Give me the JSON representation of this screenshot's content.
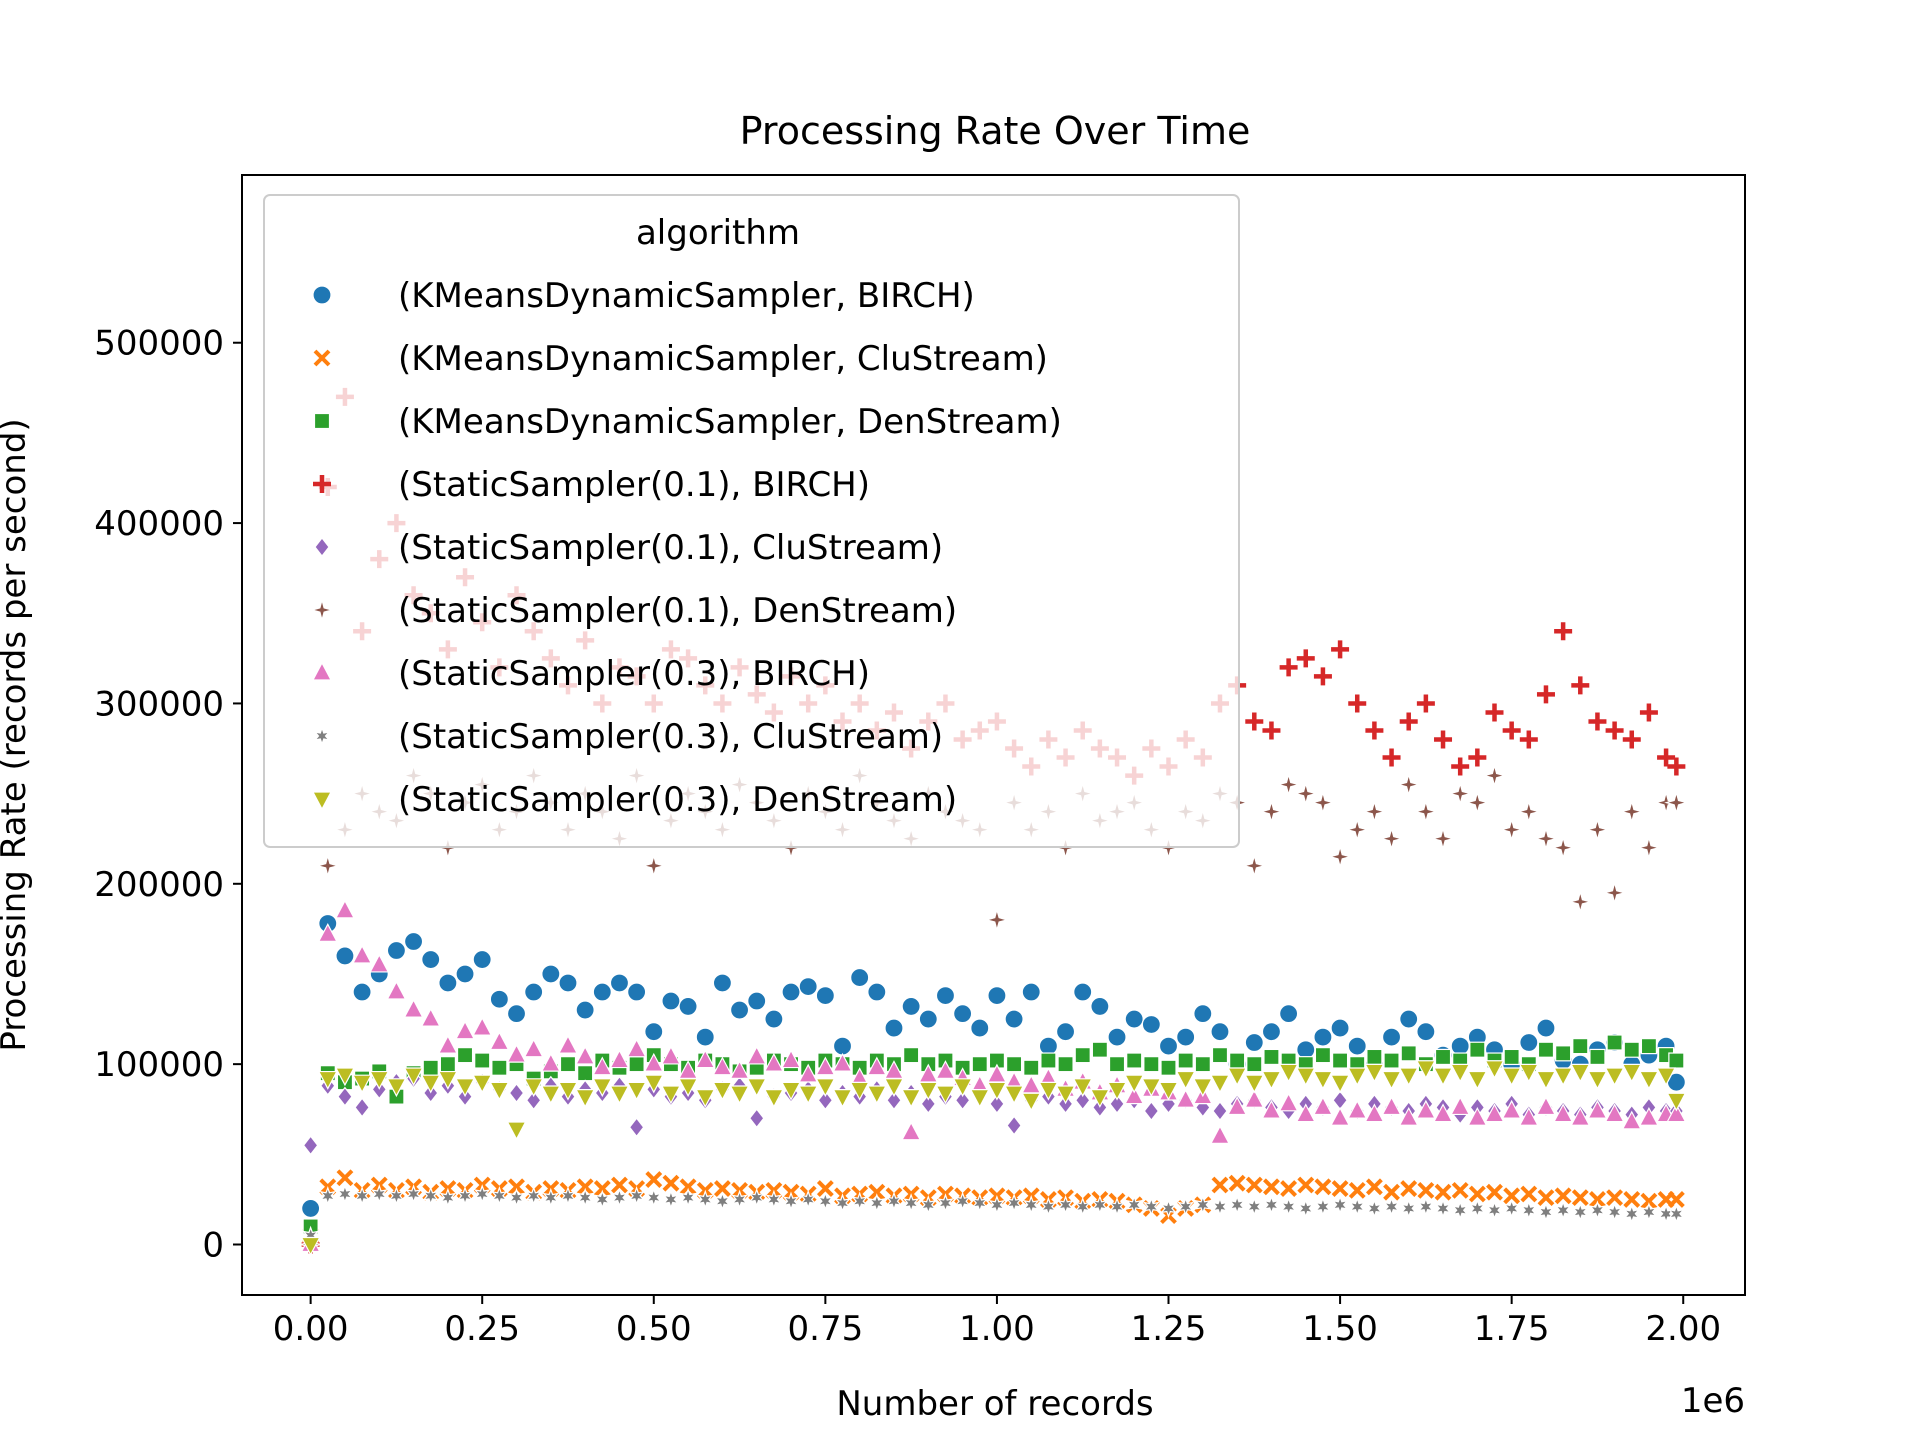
{
  "chart_data": {
    "type": "scatter",
    "title": "Processing Rate Over Time",
    "xlabel": "Number of records",
    "ylabel": "Processing Rate (records per second)",
    "x_offset_label": "1e6",
    "xlim": [
      -0.1,
      2.09
    ],
    "ylim": [
      -28000,
      593000
    ],
    "x_ticks": [
      0.0,
      0.25,
      0.5,
      0.75,
      1.0,
      1.25,
      1.5,
      1.75,
      2.0
    ],
    "x_tick_labels": [
      "0.00",
      "0.25",
      "0.50",
      "0.75",
      "1.00",
      "1.25",
      "1.50",
      "1.75",
      "2.00"
    ],
    "y_ticks": [
      0,
      100000,
      200000,
      300000,
      400000,
      500000
    ],
    "y_tick_labels": [
      "0",
      "100000",
      "200000",
      "300000",
      "400000",
      "500000"
    ],
    "grid": false,
    "legend": {
      "title": "algorithm",
      "placement": "upper-left"
    },
    "x": [
      0.0,
      0.025,
      0.05,
      0.075,
      0.1,
      0.125,
      0.15,
      0.175,
      0.2,
      0.225,
      0.25,
      0.275,
      0.3,
      0.325,
      0.35,
      0.375,
      0.4,
      0.425,
      0.45,
      0.475,
      0.5,
      0.525,
      0.55,
      0.575,
      0.6,
      0.625,
      0.65,
      0.675,
      0.7,
      0.725,
      0.75,
      0.775,
      0.8,
      0.825,
      0.85,
      0.875,
      0.9,
      0.925,
      0.95,
      0.975,
      1.0,
      1.025,
      1.05,
      1.075,
      1.1,
      1.125,
      1.15,
      1.175,
      1.2,
      1.225,
      1.25,
      1.275,
      1.3,
      1.325,
      1.35,
      1.375,
      1.4,
      1.425,
      1.45,
      1.475,
      1.5,
      1.525,
      1.55,
      1.575,
      1.6,
      1.625,
      1.65,
      1.675,
      1.7,
      1.725,
      1.75,
      1.775,
      1.8,
      1.825,
      1.85,
      1.875,
      1.9,
      1.925,
      1.95,
      1.975,
      1.99
    ],
    "series": [
      {
        "name": "(KMeansDynamicSampler, BIRCH)",
        "color": "#1f77b4",
        "marker": "circle",
        "values": [
          20000,
          178000,
          160000,
          140000,
          150000,
          163000,
          168000,
          158000,
          145000,
          150000,
          158000,
          136000,
          128000,
          140000,
          150000,
          145000,
          130000,
          140000,
          145000,
          140000,
          118000,
          135000,
          132000,
          115000,
          145000,
          130000,
          135000,
          125000,
          140000,
          143000,
          138000,
          110000,
          148000,
          140000,
          120000,
          132000,
          125000,
          138000,
          128000,
          120000,
          138000,
          125000,
          140000,
          110000,
          118000,
          140000,
          132000,
          115000,
          125000,
          122000,
          110000,
          115000,
          128000,
          118000,
          100000,
          112000,
          118000,
          128000,
          108000,
          115000,
          120000,
          110000,
          100000,
          115000,
          125000,
          118000,
          105000,
          110000,
          115000,
          108000,
          100000,
          112000,
          120000,
          102000,
          100000,
          108000,
          112000,
          100000,
          105000,
          110000,
          90000
        ]
      },
      {
        "name": "(KMeansDynamicSampler, CluStream)",
        "color": "#ff7f0e",
        "marker": "x",
        "values": [
          5000,
          32000,
          37000,
          30000,
          33000,
          30000,
          32000,
          29000,
          31000,
          30000,
          33000,
          31000,
          32000,
          29000,
          31000,
          30000,
          32000,
          31000,
          33000,
          31000,
          36000,
          34000,
          32000,
          30000,
          31000,
          30000,
          29000,
          30000,
          29000,
          28000,
          31000,
          27000,
          28000,
          29000,
          27000,
          28000,
          26000,
          28000,
          27000,
          26000,
          27000,
          26000,
          27000,
          25000,
          26000,
          24000,
          25000,
          24000,
          22000,
          20000,
          16000,
          20000,
          22000,
          33000,
          34000,
          33000,
          32000,
          31000,
          33000,
          32000,
          31000,
          30000,
          32000,
          29000,
          31000,
          30000,
          29000,
          30000,
          28000,
          29000,
          27000,
          28000,
          26000,
          27000,
          26000,
          25000,
          26000,
          25000,
          24000,
          25000,
          25000
        ]
      },
      {
        "name": "(KMeansDynamicSampler, DenStream)",
        "color": "#2ca02c",
        "marker": "square",
        "values": [
          10000,
          95000,
          90000,
          92000,
          96000,
          82000,
          95000,
          98000,
          100000,
          105000,
          102000,
          98000,
          100000,
          92000,
          96000,
          100000,
          95000,
          102000,
          98000,
          100000,
          105000,
          100000,
          98000,
          102000,
          100000,
          96000,
          98000,
          102000,
          100000,
          98000,
          102000,
          100000,
          98000,
          102000,
          100000,
          105000,
          100000,
          102000,
          98000,
          100000,
          102000,
          100000,
          98000,
          102000,
          100000,
          105000,
          108000,
          100000,
          102000,
          100000,
          98000,
          102000,
          100000,
          105000,
          102000,
          100000,
          104000,
          102000,
          100000,
          105000,
          102000,
          100000,
          104000,
          102000,
          106000,
          100000,
          104000,
          102000,
          108000,
          102000,
          104000,
          100000,
          108000,
          106000,
          110000,
          104000,
          112000,
          108000,
          110000,
          105000,
          102000
        ]
      },
      {
        "name": "(StaticSampler(0.1), BIRCH)",
        "color": "#d62728",
        "marker": "plus",
        "values": [
          0,
          420000,
          470000,
          340000,
          380000,
          400000,
          360000,
          350000,
          330000,
          370000,
          345000,
          320000,
          360000,
          340000,
          325000,
          310000,
          335000,
          300000,
          320000,
          315000,
          300000,
          330000,
          325000,
          310000,
          300000,
          320000,
          305000,
          295000,
          315000,
          300000,
          310000,
          290000,
          300000,
          285000,
          295000,
          275000,
          290000,
          300000,
          280000,
          285000,
          290000,
          275000,
          265000,
          280000,
          270000,
          285000,
          275000,
          270000,
          260000,
          275000,
          265000,
          280000,
          270000,
          300000,
          310000,
          290000,
          285000,
          320000,
          325000,
          315000,
          330000,
          300000,
          285000,
          270000,
          290000,
          300000,
          280000,
          265000,
          270000,
          295000,
          285000,
          280000,
          305000,
          340000,
          310000,
          290000,
          285000,
          280000,
          295000,
          270000,
          265000
        ]
      },
      {
        "name": "(StaticSampler(0.1), CluStream)",
        "color": "#9467bd",
        "marker": "diamond",
        "values": [
          55000,
          88000,
          82000,
          76000,
          86000,
          90000,
          92000,
          84000,
          88000,
          82000,
          90000,
          86000,
          84000,
          80000,
          88000,
          82000,
          86000,
          84000,
          88000,
          65000,
          86000,
          82000,
          84000,
          80000,
          86000,
          88000,
          70000,
          82000,
          84000,
          86000,
          80000,
          84000,
          82000,
          86000,
          80000,
          84000,
          78000,
          82000,
          80000,
          84000,
          78000,
          66000,
          80000,
          82000,
          78000,
          80000,
          76000,
          78000,
          80000,
          74000,
          78000,
          80000,
          76000,
          74000,
          78000,
          80000,
          76000,
          74000,
          78000,
          76000,
          80000,
          74000,
          78000,
          76000,
          74000,
          78000,
          76000,
          72000,
          76000,
          74000,
          78000,
          72000,
          76000,
          74000,
          72000,
          76000,
          74000,
          72000,
          76000,
          74000,
          74000
        ]
      },
      {
        "name": "(StaticSampler(0.1), DenStream)",
        "color": "#8c564b",
        "marker": "star4",
        "values": [
          0,
          210000,
          230000,
          250000,
          240000,
          235000,
          260000,
          250000,
          220000,
          245000,
          255000,
          230000,
          240000,
          260000,
          245000,
          230000,
          250000,
          240000,
          225000,
          260000,
          210000,
          235000,
          250000,
          240000,
          230000,
          255000,
          245000,
          235000,
          220000,
          250000,
          240000,
          230000,
          260000,
          245000,
          235000,
          225000,
          250000,
          240000,
          235000,
          230000,
          180000,
          245000,
          230000,
          240000,
          220000,
          250000,
          235000,
          240000,
          245000,
          230000,
          220000,
          240000,
          235000,
          250000,
          245000,
          210000,
          240000,
          255000,
          250000,
          245000,
          215000,
          230000,
          240000,
          225000,
          255000,
          240000,
          225000,
          250000,
          245000,
          260000,
          230000,
          240000,
          225000,
          220000,
          190000,
          230000,
          195000,
          240000,
          220000,
          245000,
          245000
        ]
      },
      {
        "name": "(StaticSampler(0.3), BIRCH)",
        "color": "#e377c2",
        "marker": "triangle-up",
        "values": [
          0,
          172000,
          185000,
          160000,
          155000,
          140000,
          130000,
          125000,
          110000,
          118000,
          120000,
          112000,
          105000,
          108000,
          100000,
          110000,
          104000,
          98000,
          102000,
          108000,
          100000,
          104000,
          96000,
          102000,
          98000,
          96000,
          104000,
          100000,
          102000,
          94000,
          98000,
          100000,
          92000,
          98000,
          96000,
          62000,
          94000,
          96000,
          92000,
          88000,
          94000,
          90000,
          88000,
          92000,
          86000,
          90000,
          84000,
          88000,
          82000,
          86000,
          84000,
          80000,
          82000,
          60000,
          76000,
          80000,
          74000,
          78000,
          72000,
          76000,
          70000,
          74000,
          72000,
          76000,
          70000,
          74000,
          72000,
          76000,
          70000,
          72000,
          74000,
          70000,
          76000,
          72000,
          70000,
          74000,
          72000,
          68000,
          70000,
          72000,
          72000
        ]
      },
      {
        "name": "(StaticSampler(0.3), CluStream)",
        "color": "#7f7f7f",
        "marker": "star6",
        "values": [
          5000,
          27000,
          28000,
          27000,
          28000,
          27000,
          28000,
          27000,
          26000,
          27000,
          28000,
          27000,
          26000,
          27000,
          26000,
          27000,
          26000,
          25000,
          26000,
          27000,
          26000,
          25000,
          26000,
          25000,
          24000,
          25000,
          26000,
          25000,
          24000,
          25000,
          24000,
          23000,
          24000,
          23000,
          24000,
          23000,
          22000,
          23000,
          24000,
          23000,
          22000,
          23000,
          22000,
          21000,
          22000,
          21000,
          22000,
          21000,
          22000,
          21000,
          20000,
          21000,
          22000,
          21000,
          22000,
          21000,
          22000,
          21000,
          20000,
          21000,
          22000,
          21000,
          20000,
          21000,
          20000,
          21000,
          20000,
          19000,
          20000,
          19000,
          20000,
          19000,
          18000,
          19000,
          18000,
          19000,
          18000,
          17000,
          18000,
          17000,
          17000
        ]
      },
      {
        "name": "(StaticSampler(0.3), DenStream)",
        "color": "#bcbd22",
        "marker": "triangle-down",
        "values": [
          0,
          92000,
          94000,
          90000,
          92000,
          88000,
          94000,
          90000,
          92000,
          88000,
          90000,
          86000,
          64000,
          88000,
          84000,
          86000,
          82000,
          88000,
          84000,
          86000,
          90000,
          84000,
          88000,
          82000,
          86000,
          84000,
          88000,
          82000,
          86000,
          84000,
          88000,
          82000,
          86000,
          84000,
          88000,
          82000,
          86000,
          84000,
          88000,
          82000,
          86000,
          84000,
          80000,
          86000,
          84000,
          88000,
          82000,
          86000,
          90000,
          88000,
          86000,
          92000,
          88000,
          90000,
          94000,
          90000,
          92000,
          96000,
          94000,
          92000,
          90000,
          94000,
          96000,
          92000,
          94000,
          98000,
          94000,
          96000,
          92000,
          98000,
          94000,
          96000,
          92000,
          94000,
          96000,
          92000,
          94000,
          96000,
          92000,
          94000,
          80000
        ]
      }
    ]
  }
}
